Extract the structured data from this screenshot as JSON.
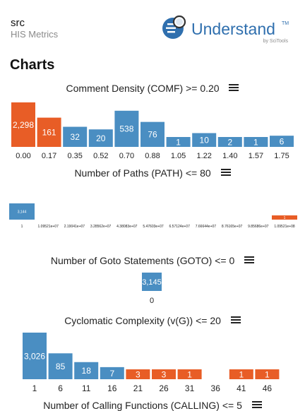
{
  "header": {
    "project_name": "src",
    "subtitle": "HIS Metrics",
    "logo_text": "Understand",
    "logo_tm": "TM",
    "logo_byline": "by SciTools"
  },
  "page_title": "Charts",
  "colors": {
    "ok": "#4a8ec2",
    "warn": "#e85d26",
    "text": "#222222"
  },
  "chart_data": [
    {
      "type": "bar",
      "title": "Comment Density (COMF) >= 0.20",
      "categories": [
        "0.00",
        "0.17",
        "0.35",
        "0.52",
        "0.70",
        "0.88",
        "1.05",
        "1.22",
        "1.40",
        "1.57",
        "1.75"
      ],
      "values": [
        2298,
        161,
        32,
        20,
        538,
        76,
        1,
        10,
        2,
        1,
        6
      ],
      "value_labels": [
        "2,298",
        "161",
        "32",
        "20",
        "538",
        "76",
        "1",
        "10",
        "2",
        "1",
        "6"
      ],
      "status": [
        "warn",
        "warn",
        "ok",
        "ok",
        "ok",
        "ok",
        "ok",
        "ok",
        "ok",
        "ok",
        "ok"
      ]
    },
    {
      "type": "bar",
      "title": "Number of Paths (PATH) <= 80",
      "categories": [
        "1",
        "1.09521e+07",
        "2.19041e+07",
        "3.28562e+07",
        "4.38083e+07",
        "5.47603e+07",
        "6.57124e+07",
        "7.66644e+07",
        "8.76165e+07",
        "9.85686e+07",
        "1.09521e+08"
      ],
      "values": [
        3144,
        0,
        0,
        0,
        0,
        0,
        0,
        0,
        0,
        0,
        1
      ],
      "value_labels": [
        "3,144",
        "",
        "",
        "",
        "",
        "",
        "",
        "",
        "",
        "",
        "1"
      ],
      "status": [
        "ok",
        "ok",
        "ok",
        "ok",
        "ok",
        "ok",
        "ok",
        "ok",
        "ok",
        "ok",
        "warn"
      ]
    },
    {
      "type": "bar",
      "title": "Number of Goto Statements (GOTO) <= 0",
      "categories": [
        "0"
      ],
      "values": [
        3145
      ],
      "value_labels": [
        "3,145"
      ],
      "status": [
        "ok"
      ]
    },
    {
      "type": "bar",
      "title": "Cyclomatic Complexity (v(G)) <= 20",
      "categories": [
        "1",
        "6",
        "11",
        "16",
        "21",
        "26",
        "31",
        "36",
        "41",
        "46"
      ],
      "values": [
        3026,
        85,
        18,
        7,
        3,
        3,
        1,
        0,
        1,
        1
      ],
      "value_labels": [
        "3,026",
        "85",
        "18",
        "7",
        "3",
        "3",
        "1",
        "",
        "1",
        "1"
      ],
      "status": [
        "ok",
        "ok",
        "ok",
        "ok",
        "warn",
        "warn",
        "warn",
        "ok",
        "warn",
        "warn"
      ]
    },
    {
      "type": "bar",
      "title": "Number of Calling Functions (CALLING) <= 5",
      "categories": [],
      "values": [],
      "value_labels": [],
      "status": []
    }
  ]
}
